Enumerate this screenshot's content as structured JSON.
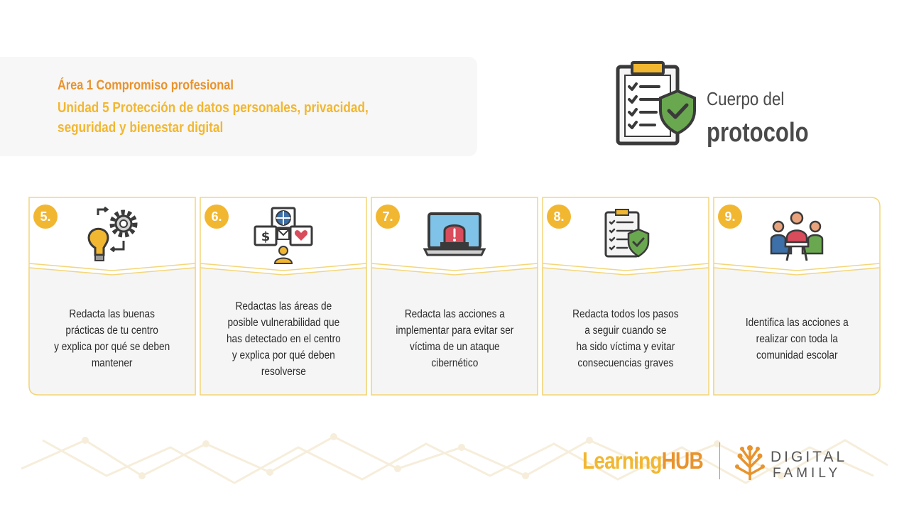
{
  "header": {
    "area_title": "Área 1 Compromiso profesional",
    "unit_title": "Unidad 5 Protección de datos personales, privacidad, seguridad y bienestar digital"
  },
  "protocol": {
    "line1": "Cuerpo del",
    "line2": "protocolo",
    "icon": "clipboard-shield-icon"
  },
  "steps": [
    {
      "number": "5.",
      "icon": "lightbulb-gear-icon",
      "text": "Redacta las buenas\nprácticas de tu centro\ny explica por qué se deben\nmantener"
    },
    {
      "number": "6.",
      "icon": "network-vulnerability-icon",
      "text": "Redactas las áreas de\nposible vulnerabilidad que\nhas detectado en el centro\ny explica por qué deben\nresolverse"
    },
    {
      "number": "7.",
      "icon": "laptop-alert-icon",
      "text": "Redacta las acciones a\nimplementar para evitar ser\nvíctima de un ataque\ncibernético"
    },
    {
      "number": "8.",
      "icon": "clipboard-shield-icon",
      "text": "Redacta todos los pasos\na seguir cuando se\nha sido víctima y evitar\nconsecuencias graves"
    },
    {
      "number": "9.",
      "icon": "community-meeting-icon",
      "text": "Identifica las acciones a\nrealizar con toda la\ncomunidad escolar"
    }
  ],
  "footer": {
    "learninghub_part1": "Learning",
    "learninghub_part2": "HUB",
    "digital": "DIGITAL",
    "family": "FAMILY"
  },
  "colors": {
    "accent_orange": "#e8932d",
    "accent_yellow": "#f2b731",
    "card_bg": "#f5f5f5",
    "card_border": "#f3d67a",
    "text_dark": "#2b2b2b",
    "heading_gray": "#4a4a4a"
  }
}
